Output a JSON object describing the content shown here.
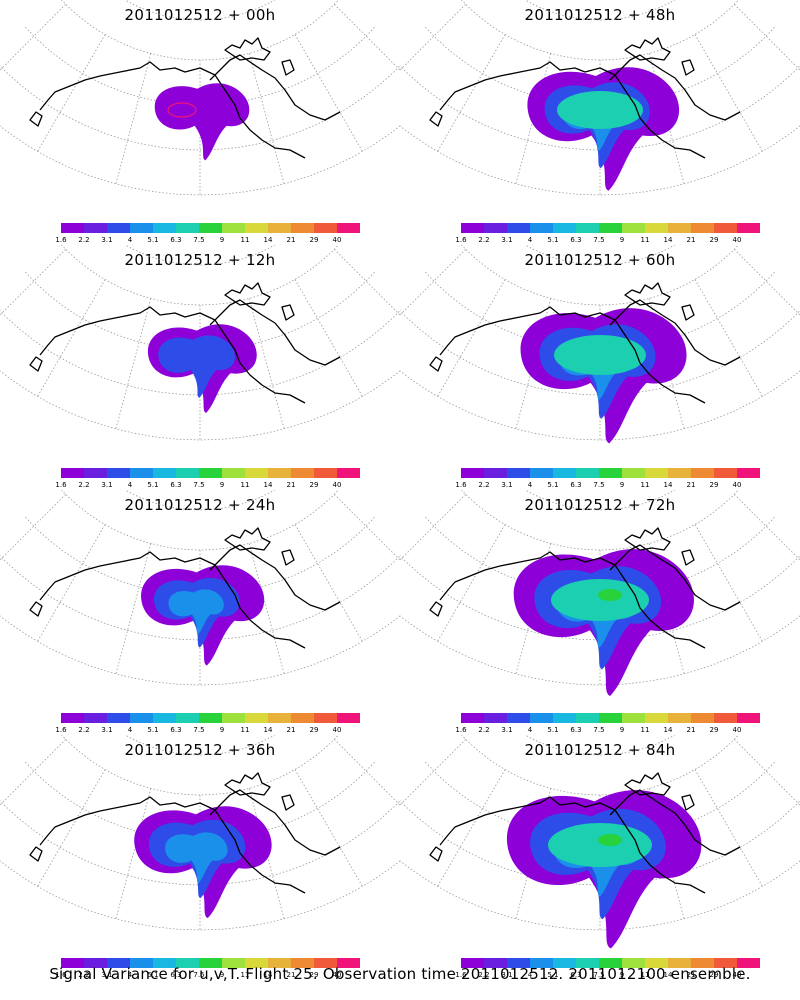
{
  "panels": [
    {
      "title": "2011012512 + 00h",
      "level": 1
    },
    {
      "title": "2011012512 + 48h",
      "level": 5
    },
    {
      "title": "2011012512 + 12h",
      "level": 2
    },
    {
      "title": "2011012512 + 60h",
      "level": 6
    },
    {
      "title": "2011012512 + 24h",
      "level": 3
    },
    {
      "title": "2011012512 + 72h",
      "level": 7
    },
    {
      "title": "2011012512 + 36h",
      "level": 4
    },
    {
      "title": "2011012512 + 84h",
      "level": 8
    }
  ],
  "colorbar": {
    "colors": [
      "#8d00d8",
      "#6a1fe0",
      "#2e4de8",
      "#1a90ea",
      "#18b8e0",
      "#1ccfb0",
      "#27d23a",
      "#9ee03c",
      "#d8d83a",
      "#e8b23a",
      "#ef8a34",
      "#f05a3a",
      "#f0147a"
    ],
    "labels": [
      "1.6",
      "2.2",
      "3.1",
      "4",
      "5.1",
      "6.3",
      "7.5",
      "9",
      "11",
      "14",
      "21",
      "29",
      "40"
    ]
  },
  "footer": "Signal Variance for u,v,T. Flight 25. Observation time 2011012512. 2011012100 ensemble."
}
